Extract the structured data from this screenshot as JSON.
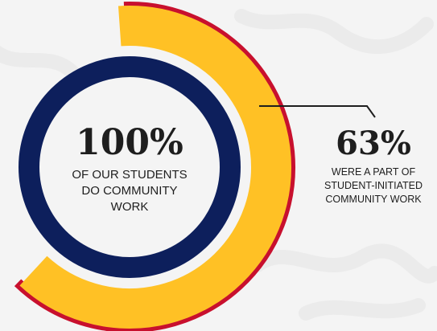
{
  "chart_data": {
    "type": "pie",
    "colors": {
      "outer_ring": "#ffc125",
      "inner_ring": "#0d1f5c",
      "accent_ring": "#c8102e",
      "leader_line": "#1e1e1e",
      "background": "#f4f4f4"
    },
    "rings": [
      {
        "name": "",
        "value_percent": 100,
        "value_label": "100%",
        "caption_lines": [
          "OF OUR STUDENTS",
          "DO COMMUNITY",
          "WORK"
        ]
      },
      {
        "name": "",
        "value_percent": 63,
        "value_label": "63%",
        "caption_lines": [
          "WERE A PART OF",
          "STUDENT-INITIATED",
          "COMMUNITY WORK"
        ]
      }
    ]
  }
}
